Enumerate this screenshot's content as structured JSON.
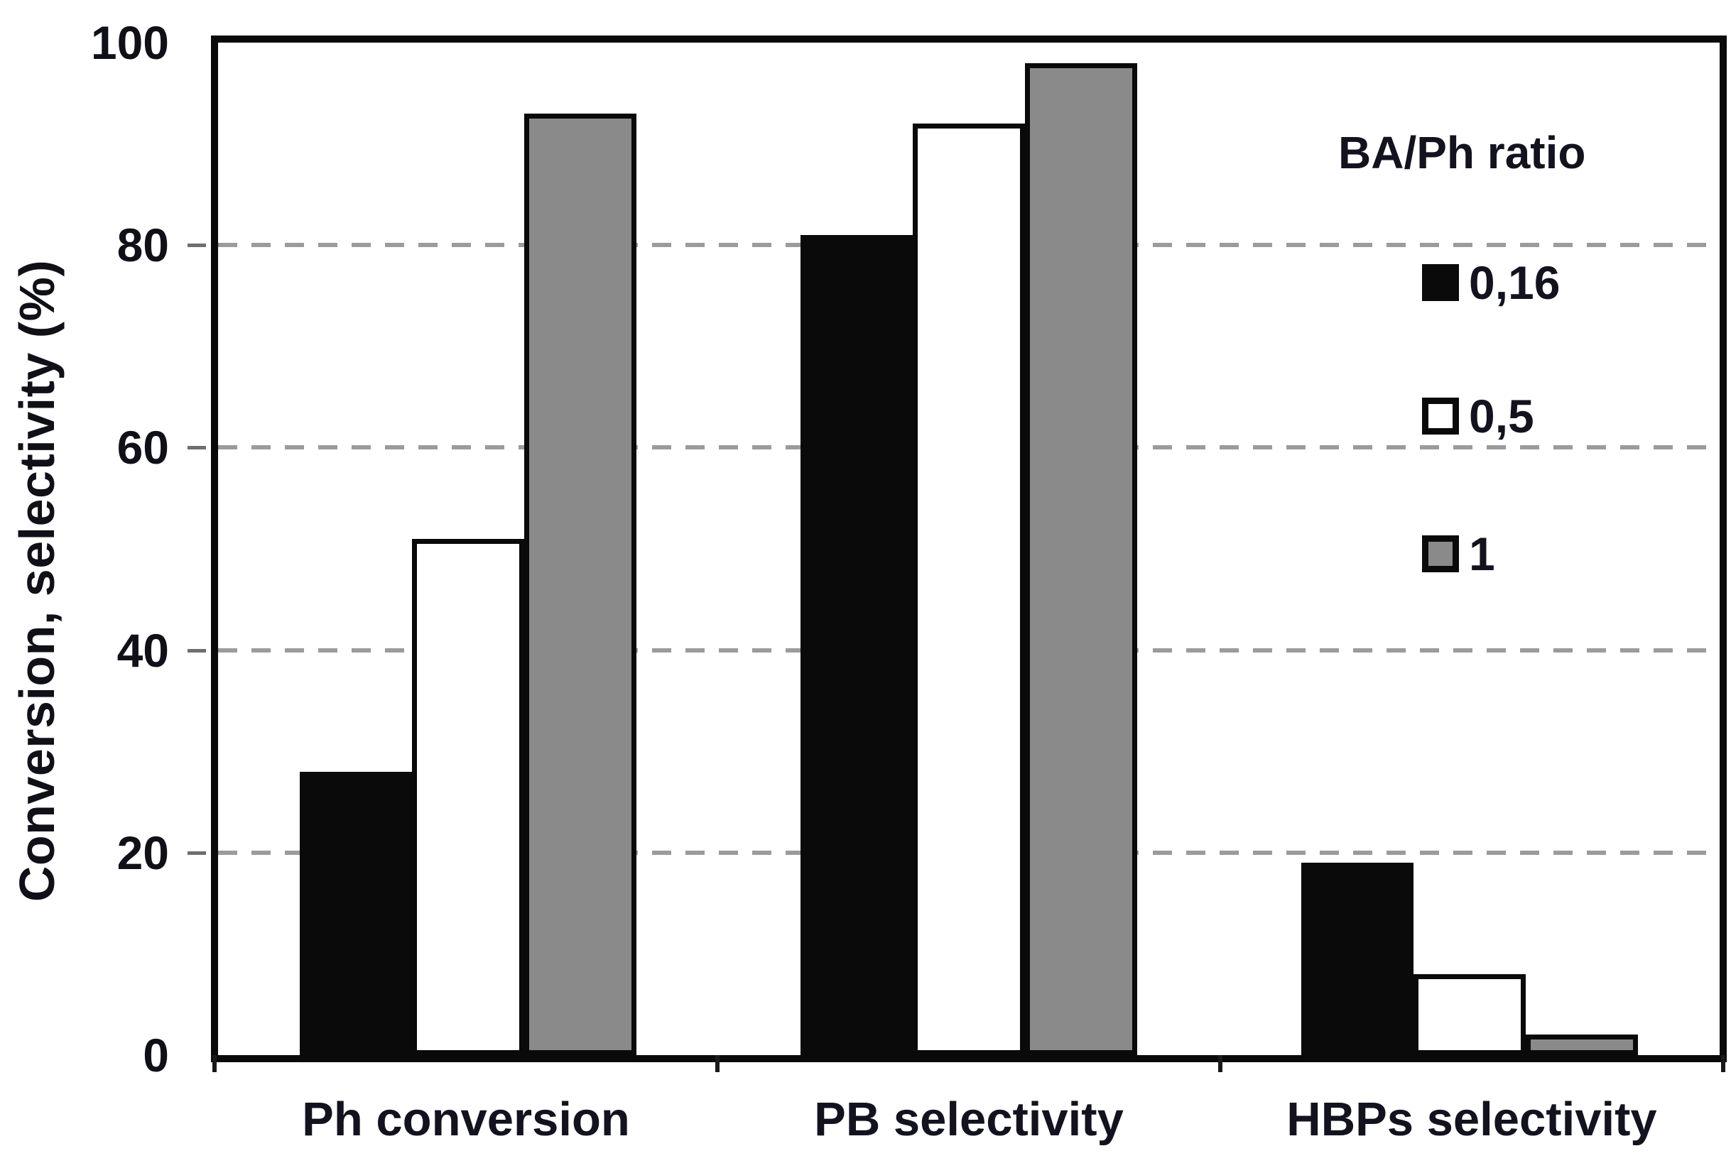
{
  "chart_data": {
    "type": "bar",
    "title": "",
    "categories": [
      "Ph conversion",
      "PB selectivity",
      "HBPs selectivity"
    ],
    "series": [
      {
        "name": "0,16",
        "color": "#0a0a0a",
        "values": [
          28,
          81,
          19
        ]
      },
      {
        "name": "0,5",
        "color": "#ffffff",
        "values": [
          51,
          92,
          8
        ]
      },
      {
        "name": "1",
        "color": "#8a8a8a",
        "values": [
          93,
          98,
          2
        ]
      }
    ],
    "legend_title": "BA/Ph ratio",
    "legend_position": "upper right",
    "xlabel": "",
    "ylabel": "Conversion, selectivity (%)",
    "yticks": [
      0,
      20,
      40,
      60,
      80,
      100
    ],
    "grid_values": [
      20,
      40,
      60,
      80
    ],
    "ylim": [
      0,
      100
    ],
    "grid": "dashed horizontal",
    "colors": {
      "axis": "#0a0a0a",
      "gridline": "#9b9b9b",
      "text": "#101018",
      "background": "#ffffff"
    }
  }
}
